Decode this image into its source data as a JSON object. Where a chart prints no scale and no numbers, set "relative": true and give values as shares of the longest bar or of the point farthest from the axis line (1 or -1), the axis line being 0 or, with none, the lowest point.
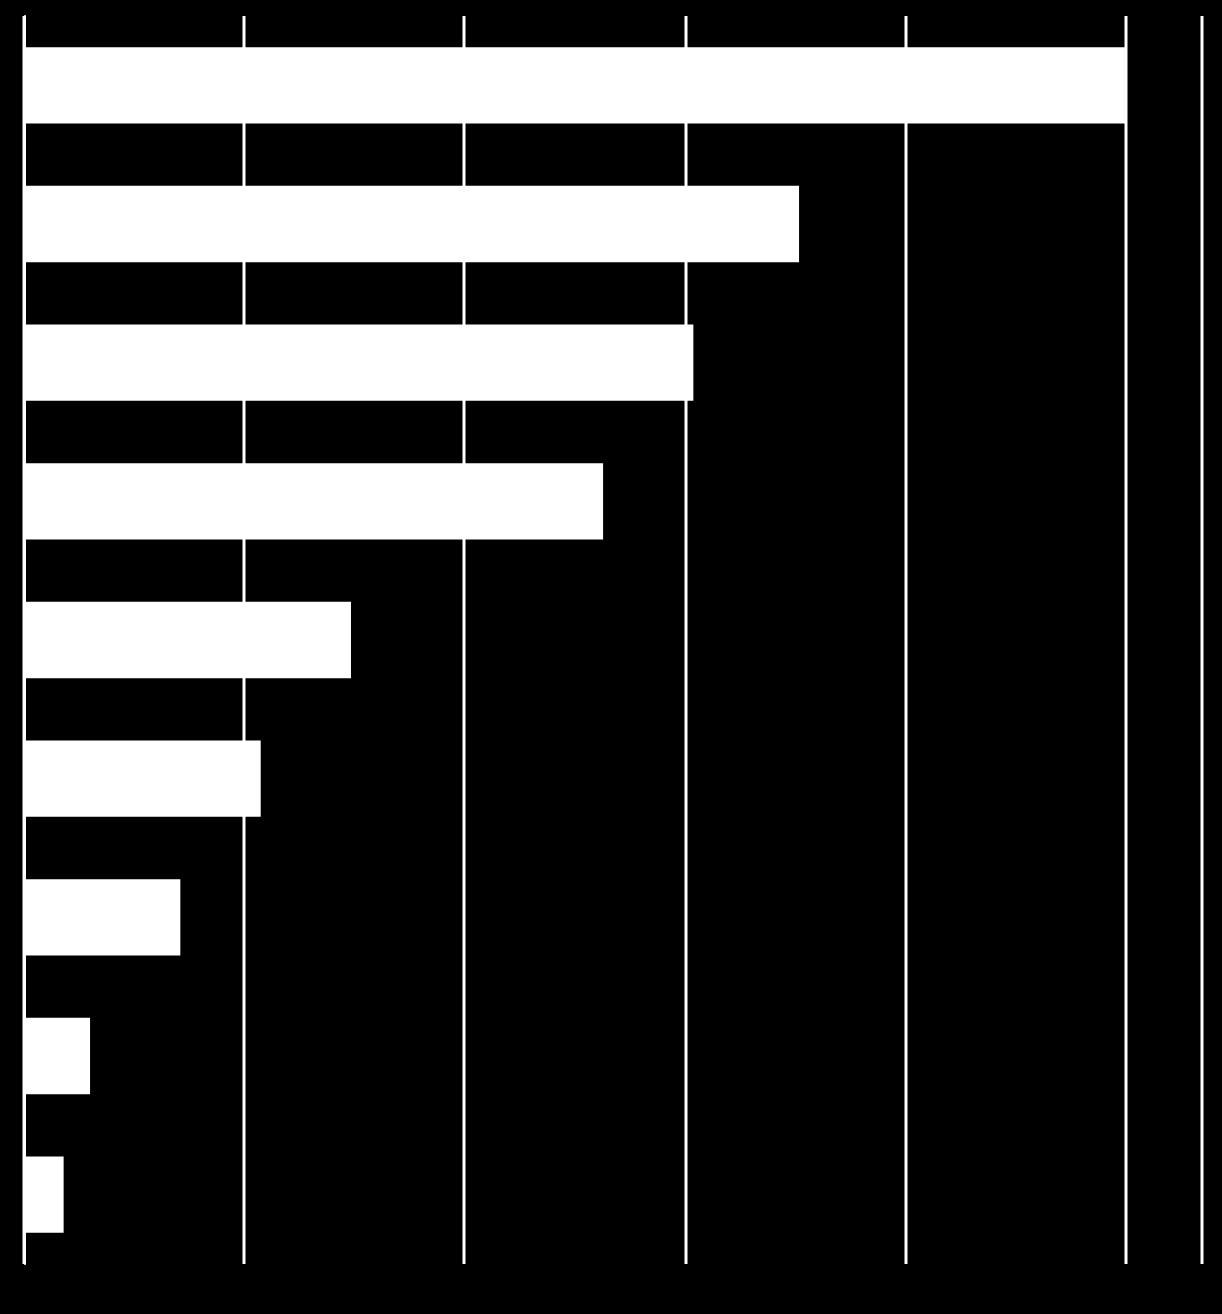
{
  "chart_data": {
    "type": "bar",
    "orientation": "horizontal",
    "relative": true,
    "categories": [
      null,
      null,
      null,
      null,
      null,
      null,
      null,
      null,
      null
    ],
    "values": [
      1,
      0.704,
      0.608,
      0.526,
      0.297,
      0.215,
      0.142,
      0.06,
      0.036
    ],
    "color": "#ffffff",
    "grid": "x"
  }
}
